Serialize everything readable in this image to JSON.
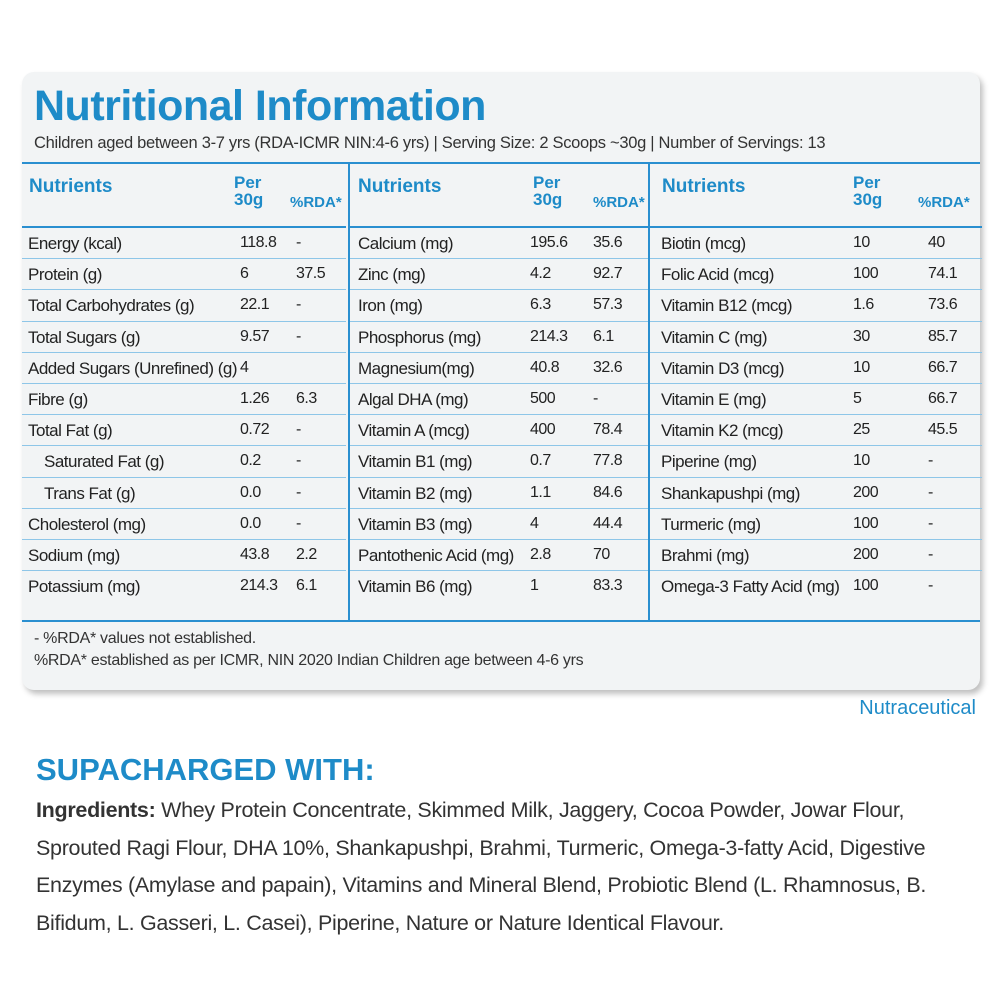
{
  "title": "Nutritional Information",
  "subtitle": "Children aged between 3-7 yrs (RDA-ICMR NIN:4-6 yrs) | Serving Size: 2 Scoops ~30g | Number of Servings: 13",
  "headers": {
    "nutrients": "Nutrients",
    "per_line1": "Per",
    "per_line2": "30g",
    "rda": "%RDA*"
  },
  "columns": [
    [
      [
        "Energy (kcal)",
        "118.8",
        "-"
      ],
      [
        "Protein (g)",
        "6",
        "37.5"
      ],
      [
        "Total Carbohydrates (g)",
        "22.1",
        "-"
      ],
      [
        "Total Sugars (g)",
        "9.57",
        "-"
      ],
      [
        "Added Sugars (Unrefined) (g)",
        "4",
        ""
      ],
      [
        "Fibre (g)",
        "1.26",
        "6.3"
      ],
      [
        "Total Fat (g)",
        "0.72",
        "-"
      ],
      [
        "Saturated Fat (g)",
        "0.2",
        "-"
      ],
      [
        "Trans Fat (g)",
        "0.0",
        "-"
      ],
      [
        "Cholesterol (mg)",
        "0.0",
        "-"
      ],
      [
        "Sodium (mg)",
        "43.8",
        "2.2"
      ],
      [
        "Potassium (mg)",
        "214.3",
        "6.1"
      ]
    ],
    [
      [
        "Calcium (mg)",
        "195.6",
        "35.6"
      ],
      [
        "Zinc (mg)",
        "4.2",
        "92.7"
      ],
      [
        "Iron (mg)",
        "6.3",
        "57.3"
      ],
      [
        "Phosphorus (mg)",
        "214.3",
        "6.1"
      ],
      [
        "Magnesium(mg)",
        "40.8",
        "32.6"
      ],
      [
        "Algal DHA (mg)",
        "500",
        "-"
      ],
      [
        "Vitamin A (mcg)",
        "400",
        "78.4"
      ],
      [
        "Vitamin B1 (mg)",
        "0.7",
        "77.8"
      ],
      [
        "Vitamin B2 (mg)",
        "1.1",
        "84.6"
      ],
      [
        "Vitamin B3 (mg)",
        "4",
        "44.4"
      ],
      [
        "Pantothenic Acid (mg)",
        "2.8",
        "70"
      ],
      [
        "Vitamin B6 (mg)",
        "1",
        "83.3"
      ]
    ],
    [
      [
        "Biotin (mcg)",
        "10",
        "40"
      ],
      [
        "Folic Acid (mcg)",
        "100",
        "74.1"
      ],
      [
        "Vitamin B12 (mcg)",
        "1.6",
        "73.6"
      ],
      [
        "Vitamin C (mg)",
        "30",
        "85.7"
      ],
      [
        "Vitamin D3 (mcg)",
        "10",
        "66.7"
      ],
      [
        "Vitamin E (mg)",
        "5",
        "66.7"
      ],
      [
        "Vitamin K2 (mcg)",
        "25",
        "45.5"
      ],
      [
        "Piperine (mg)",
        "10",
        "-"
      ],
      [
        "Shankapushpi (mg)",
        "200",
        "-"
      ],
      [
        "Turmeric (mg)",
        "100",
        "-"
      ],
      [
        "Brahmi (mg)",
        "200",
        "-"
      ],
      [
        "Omega-3 Fatty Acid (mg)",
        "100",
        "-"
      ]
    ]
  ],
  "notes": {
    "line1": "- %RDA* values not established.",
    "line2": "%RDA* established as per ICMR, NIN 2020 Indian Children age between 4-6 yrs"
  },
  "brand_tag": "Nutraceutical",
  "supercharged_title": "SUPACHARGED WITH:",
  "ingredients_label": "Ingredients:",
  "ingredients_text": " Whey Protein Concentrate, Skimmed Milk, Jaggery, Cocoa Powder, Jowar Flour, Sprouted Ragi Flour, DHA 10%, Shankapushpi, Brahmi, Turmeric, Omega-3-fatty Acid, Digestive Enzymes (Amylase and papain), Vitamins and Mineral Blend, Probiotic Blend (L. Rhamnosus, B. Bifidum, L. Gasseri, L. Casei), Piperine, Nature or Nature Identical Flavour.",
  "colors": {
    "accent": "#1e8bc8",
    "card": "#f2f4f5",
    "rule": "#2a8fd0"
  }
}
